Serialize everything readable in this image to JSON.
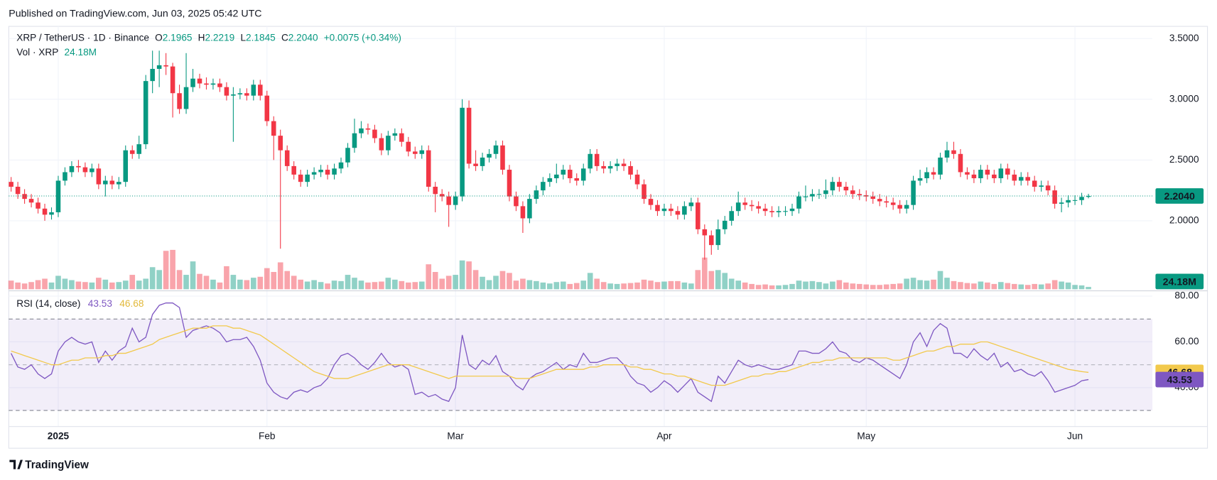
{
  "chart_data": {
    "type": "candlestick",
    "published": "Published on TradingView.com, Jun 03, 2025 05:42 UTC",
    "title": "XRP / TetherUS · 1D · Binance",
    "legend_labels": [
      "O",
      "H",
      "L",
      "C"
    ],
    "change": "+0.0075 (+0.34%)",
    "brand": "TradingView",
    "up_color": "#089981",
    "down_color": "#f23645",
    "grid": true,
    "xlim": [
      -0.35,
      169.5
    ],
    "xticks": [
      {
        "value": 7,
        "label": "2025"
      },
      {
        "value": 38,
        "label": "Feb"
      },
      {
        "value": 66,
        "label": "Mar"
      },
      {
        "value": 97,
        "label": "Apr"
      },
      {
        "value": 127,
        "label": "May"
      },
      {
        "value": 158,
        "label": "Jun"
      }
    ],
    "ylim": [
      1.43,
      3.6
    ],
    "yticks": [
      {
        "value": 2,
        "label": "2.0000"
      },
      {
        "value": 2.5,
        "label": "2.5000"
      },
      {
        "value": 3,
        "label": "3.0000"
      },
      {
        "value": 3.5,
        "label": "3.5000"
      }
    ],
    "last_label": "2.2040",
    "open": [
      2.32,
      2.28,
      2.22,
      2.18,
      2.15,
      2.1,
      2.05,
      2.07,
      2.33,
      2.4,
      2.45,
      2.44,
      2.4,
      2.43,
      2.3,
      2.33,
      2.3,
      2.32,
      2.58,
      2.55,
      2.63,
      3.15,
      3.25,
      3.28,
      3.27,
      3.05,
      2.92,
      3.1,
      3.17,
      3.13,
      3.12,
      3.13,
      3.1,
      3.03,
      3.04,
      3.05,
      3.03,
      3.12,
      3.03,
      2.82,
      2.7,
      2.58,
      2.45,
      2.38,
      2.32,
      2.38,
      2.4,
      2.42,
      2.38,
      2.43,
      2.48,
      2.6,
      2.72,
      2.76,
      2.75,
      2.68,
      2.58,
      2.7,
      2.72,
      2.65,
      2.57,
      2.55,
      2.58,
      2.28,
      2.22,
      2.2,
      2.13,
      2.2,
      2.93,
      2.47,
      2.45,
      2.52,
      2.55,
      2.62,
      2.42,
      2.2,
      2.12,
      2.02,
      2.18,
      2.25,
      2.32,
      2.35,
      2.38,
      2.42,
      2.35,
      2.33,
      2.43,
      2.55,
      2.45,
      2.43,
      2.45,
      2.47,
      2.45,
      2.38,
      2.3,
      2.18,
      2.13,
      2.08,
      2.1,
      2.08,
      2.05,
      2.12,
      2.15,
      1.93,
      1.88,
      1.8,
      1.93,
      2.0,
      2.08,
      2.15,
      2.13,
      2.12,
      2.1,
      2.08,
      2.07,
      2.08,
      2.08,
      2.1,
      2.2,
      2.2,
      2.22,
      2.22,
      2.25,
      2.32,
      2.28,
      2.25,
      2.22,
      2.21,
      2.2,
      2.18,
      2.16,
      2.15,
      2.13,
      2.1,
      2.13,
      2.33,
      2.35,
      2.4,
      2.38,
      2.52,
      2.58,
      2.55,
      2.4,
      2.38,
      2.35,
      2.42,
      2.38,
      2.35,
      2.43,
      2.38,
      2.33,
      2.36,
      2.33,
      2.28,
      2.29,
      2.25,
      2.14,
      2.15,
      2.17,
      2.17,
      2.1965
    ],
    "high": [
      2.36,
      2.32,
      2.26,
      2.22,
      2.19,
      2.14,
      2.11,
      2.37,
      2.44,
      2.49,
      2.5,
      2.48,
      2.47,
      2.47,
      2.37,
      2.37,
      2.36,
      2.62,
      2.62,
      2.7,
      3.2,
      3.4,
      3.4,
      3.38,
      3.3,
      3.12,
      3.38,
      3.25,
      3.21,
      3.18,
      3.17,
      3.17,
      3.14,
      3.1,
      3.09,
      3.09,
      3.16,
      3.16,
      3.07,
      2.86,
      2.75,
      2.62,
      2.49,
      2.42,
      2.42,
      2.44,
      2.46,
      2.46,
      2.47,
      2.52,
      2.64,
      2.84,
      2.82,
      2.8,
      2.79,
      2.72,
      2.74,
      2.76,
      2.76,
      2.69,
      2.61,
      2.62,
      2.62,
      2.32,
      2.26,
      2.24,
      2.24,
      3.0,
      2.99,
      2.58,
      2.56,
      2.59,
      2.66,
      2.66,
      2.46,
      2.24,
      2.16,
      2.22,
      2.29,
      2.36,
      2.39,
      2.47,
      2.46,
      2.46,
      2.39,
      2.47,
      2.59,
      2.59,
      2.49,
      2.49,
      2.51,
      2.51,
      2.49,
      2.42,
      2.34,
      2.22,
      2.17,
      2.14,
      2.14,
      2.12,
      2.16,
      2.19,
      2.19,
      1.97,
      1.92,
      2.01,
      2.04,
      2.12,
      2.24,
      2.19,
      2.17,
      2.16,
      2.14,
      2.12,
      2.12,
      2.12,
      2.14,
      2.24,
      2.29,
      2.26,
      2.26,
      2.34,
      2.36,
      2.36,
      2.32,
      2.29,
      2.26,
      2.25,
      2.24,
      2.22,
      2.2,
      2.19,
      2.17,
      2.17,
      2.37,
      2.42,
      2.44,
      2.44,
      2.56,
      2.65,
      2.65,
      2.59,
      2.44,
      2.42,
      2.46,
      2.46,
      2.42,
      2.47,
      2.47,
      2.42,
      2.4,
      2.4,
      2.37,
      2.33,
      2.33,
      2.29,
      2.19,
      2.21,
      2.21,
      2.23,
      2.2219
    ],
    "low": [
      2.24,
      2.18,
      2.14,
      2.11,
      2.06,
      2.0,
      2.01,
      2.03,
      2.29,
      2.36,
      2.4,
      2.36,
      2.36,
      2.26,
      2.2,
      2.26,
      2.26,
      2.28,
      2.51,
      2.51,
      2.59,
      3.05,
      3.1,
      3.2,
      2.85,
      2.88,
      2.88,
      3.06,
      3.09,
      3.08,
      3.08,
      3.06,
      2.99,
      2.65,
      3.0,
      2.99,
      2.99,
      2.99,
      2.78,
      2.5,
      1.77,
      2.41,
      2.34,
      2.28,
      2.28,
      2.34,
      2.36,
      2.34,
      2.34,
      2.39,
      2.44,
      2.56,
      2.68,
      2.71,
      2.64,
      2.54,
      2.54,
      2.66,
      2.61,
      2.53,
      2.51,
      2.51,
      2.24,
      2.07,
      2.16,
      1.95,
      2.09,
      2.16,
      2.43,
      2.41,
      2.41,
      2.48,
      2.51,
      2.38,
      2.16,
      2.08,
      1.9,
      1.98,
      2.14,
      2.21,
      2.28,
      2.31,
      2.34,
      2.31,
      2.29,
      2.29,
      2.39,
      2.41,
      2.39,
      2.39,
      2.41,
      2.41,
      2.34,
      2.26,
      2.14,
      2.09,
      2.04,
      2.04,
      2.04,
      2.01,
      2.01,
      2.08,
      1.89,
      1.68,
      1.72,
      1.76,
      1.89,
      1.96,
      2.04,
      2.09,
      2.08,
      2.06,
      2.04,
      2.03,
      2.03,
      2.04,
      2.04,
      2.06,
      2.16,
      2.16,
      2.18,
      2.18,
      2.21,
      2.24,
      2.21,
      2.18,
      2.17,
      2.16,
      2.14,
      2.12,
      2.11,
      2.09,
      2.06,
      2.06,
      2.09,
      2.29,
      2.31,
      2.34,
      2.34,
      2.48,
      2.51,
      2.36,
      2.34,
      2.31,
      2.31,
      2.34,
      2.31,
      2.31,
      2.34,
      2.29,
      2.29,
      2.29,
      2.24,
      2.24,
      2.21,
      2.1,
      2.07,
      2.11,
      2.13,
      2.13,
      2.1845
    ],
    "close": [
      2.28,
      2.22,
      2.18,
      2.15,
      2.1,
      2.05,
      2.07,
      2.33,
      2.4,
      2.45,
      2.44,
      2.4,
      2.43,
      2.3,
      2.33,
      2.3,
      2.32,
      2.58,
      2.55,
      2.63,
      3.15,
      3.25,
      3.28,
      3.27,
      3.05,
      2.92,
      3.1,
      3.17,
      3.13,
      3.12,
      3.13,
      3.1,
      3.03,
      3.04,
      3.05,
      3.03,
      3.12,
      3.03,
      2.82,
      2.7,
      2.58,
      2.45,
      2.38,
      2.32,
      2.38,
      2.4,
      2.42,
      2.38,
      2.43,
      2.48,
      2.6,
      2.72,
      2.76,
      2.75,
      2.68,
      2.58,
      2.7,
      2.72,
      2.65,
      2.57,
      2.55,
      2.58,
      2.28,
      2.22,
      2.2,
      2.13,
      2.2,
      2.93,
      2.47,
      2.45,
      2.52,
      2.55,
      2.62,
      2.42,
      2.2,
      2.12,
      2.02,
      2.18,
      2.25,
      2.32,
      2.35,
      2.38,
      2.42,
      2.35,
      2.33,
      2.43,
      2.55,
      2.45,
      2.43,
      2.45,
      2.47,
      2.45,
      2.38,
      2.3,
      2.18,
      2.13,
      2.08,
      2.1,
      2.08,
      2.05,
      2.12,
      2.15,
      1.93,
      1.88,
      1.8,
      1.93,
      2.0,
      2.08,
      2.15,
      2.13,
      2.12,
      2.1,
      2.08,
      2.07,
      2.08,
      2.08,
      2.1,
      2.2,
      2.2,
      2.22,
      2.22,
      2.25,
      2.32,
      2.28,
      2.25,
      2.22,
      2.21,
      2.2,
      2.18,
      2.16,
      2.15,
      2.13,
      2.1,
      2.13,
      2.33,
      2.35,
      2.4,
      2.38,
      2.52,
      2.58,
      2.55,
      2.4,
      2.38,
      2.35,
      2.42,
      2.38,
      2.35,
      2.43,
      2.38,
      2.33,
      2.36,
      2.33,
      2.28,
      2.29,
      2.25,
      2.14,
      2.15,
      2.17,
      2.17,
      2.1965,
      2.204
    ],
    "volume": {
      "label": "Vol · XRP",
      "ylim": [
        0,
        420
      ],
      "last_label": "24.18M",
      "values": [
        90,
        70,
        60,
        75,
        95,
        110,
        70,
        140,
        110,
        95,
        80,
        75,
        70,
        120,
        100,
        70,
        75,
        90,
        150,
        90,
        110,
        230,
        200,
        400,
        410,
        200,
        150,
        290,
        160,
        140,
        100,
        70,
        240,
        150,
        100,
        95,
        120,
        130,
        220,
        180,
        280,
        190,
        140,
        100,
        80,
        95,
        75,
        60,
        90,
        85,
        150,
        120,
        90,
        70,
        75,
        80,
        120,
        100,
        85,
        70,
        75,
        80,
        260,
        180,
        110,
        140,
        150,
        300,
        290,
        200,
        130,
        95,
        140,
        190,
        170,
        90,
        110,
        95,
        85,
        70,
        60,
        75,
        80,
        55,
        65,
        90,
        170,
        110,
        75,
        60,
        55,
        60,
        65,
        70,
        100,
        90,
        75,
        80,
        85,
        85,
        70,
        60,
        200,
        330,
        190,
        200,
        170,
        110,
        90,
        70,
        55,
        45,
        50,
        40,
        40,
        45,
        55,
        90,
        80,
        85,
        75,
        60,
        80,
        95,
        70,
        60,
        55,
        50,
        45,
        45,
        50,
        55,
        60,
        110,
        120,
        95,
        90,
        100,
        190,
        120,
        85,
        75,
        65,
        60,
        80,
        70,
        55,
        75,
        65,
        55,
        50,
        45,
        55,
        50,
        60,
        95,
        80,
        70,
        45,
        40,
        24.18
      ]
    },
    "rsi": {
      "label": "RSI (14, close)",
      "ylim": [
        23,
        82
      ],
      "band_color": "#7e57c2",
      "bands": [
        30,
        50,
        70
      ],
      "yticks": [
        {
          "value": 40,
          "label": "40.00"
        },
        {
          "value": 60,
          "label": "60.00"
        },
        {
          "value": 80,
          "label": "80.00"
        }
      ],
      "series": [
        {
          "color": "#7e57c2",
          "values": [
            55,
            49,
            48,
            50,
            46,
            44,
            46,
            56,
            60,
            62,
            60,
            59,
            60,
            51,
            56,
            52,
            56,
            58,
            66,
            60,
            62,
            72,
            76,
            77,
            77,
            75,
            62,
            65,
            66,
            67,
            66,
            64,
            60,
            61,
            61,
            62,
            58,
            52,
            42,
            38,
            36,
            35,
            38,
            39,
            38,
            40,
            41,
            44,
            50,
            54,
            55,
            53,
            50,
            48,
            51,
            55,
            51,
            49,
            50,
            48,
            37,
            38,
            36,
            37,
            35,
            34,
            40,
            63,
            50,
            48,
            52,
            50,
            54,
            47,
            45,
            41,
            39,
            44,
            46,
            47,
            49,
            51,
            48,
            50,
            49,
            55,
            51,
            51,
            52,
            53,
            53,
            50,
            45,
            42,
            41,
            38,
            40,
            43,
            41,
            38,
            41,
            44,
            38,
            36,
            34,
            45,
            42,
            47,
            52,
            50,
            49,
            50,
            49,
            48,
            48,
            49,
            50,
            56,
            56,
            55,
            55,
            57,
            60,
            56,
            55,
            52,
            51,
            53,
            52,
            50,
            48,
            46,
            44,
            50,
            60,
            64,
            58,
            65,
            68,
            66,
            55,
            55,
            53,
            57,
            54,
            52,
            55,
            49,
            51,
            47,
            48,
            46,
            45,
            47,
            43,
            38,
            39,
            40,
            41,
            43,
            43.53
          ]
        },
        {
          "color": "#f2c94c",
          "values": [
            56,
            55,
            54,
            53,
            52,
            51,
            50,
            50,
            51,
            52,
            52,
            53,
            53,
            53,
            54,
            54,
            55,
            55,
            56,
            57,
            58,
            59,
            61,
            62,
            63,
            64,
            65,
            66,
            66,
            66,
            67,
            67,
            67,
            66,
            66,
            65,
            64,
            63,
            61,
            59,
            57,
            55,
            53,
            51,
            49,
            47,
            46,
            45,
            44,
            44,
            44,
            45,
            46,
            47,
            48,
            49,
            50,
            50,
            50,
            50,
            49,
            48,
            47,
            46,
            45,
            44,
            45,
            45,
            45,
            45,
            45,
            45,
            45,
            45,
            45,
            44,
            44,
            44,
            45,
            46,
            47,
            48,
            48,
            48,
            48,
            48,
            49,
            49,
            50,
            50,
            50,
            50,
            49,
            49,
            48,
            48,
            47,
            46,
            46,
            45,
            45,
            44,
            43,
            42,
            41,
            41,
            41,
            42,
            43,
            44,
            45,
            45,
            46,
            46,
            47,
            47,
            48,
            49,
            50,
            51,
            51,
            52,
            52,
            53,
            53,
            53,
            53,
            53,
            53,
            53,
            53,
            52,
            52,
            53,
            54,
            55,
            56,
            56,
            57,
            58,
            58,
            59,
            59,
            59,
            60,
            60,
            59,
            58,
            57,
            56,
            55,
            54,
            53,
            52,
            51,
            50,
            49,
            48,
            47.5,
            47,
            46.68
          ]
        }
      ]
    }
  }
}
